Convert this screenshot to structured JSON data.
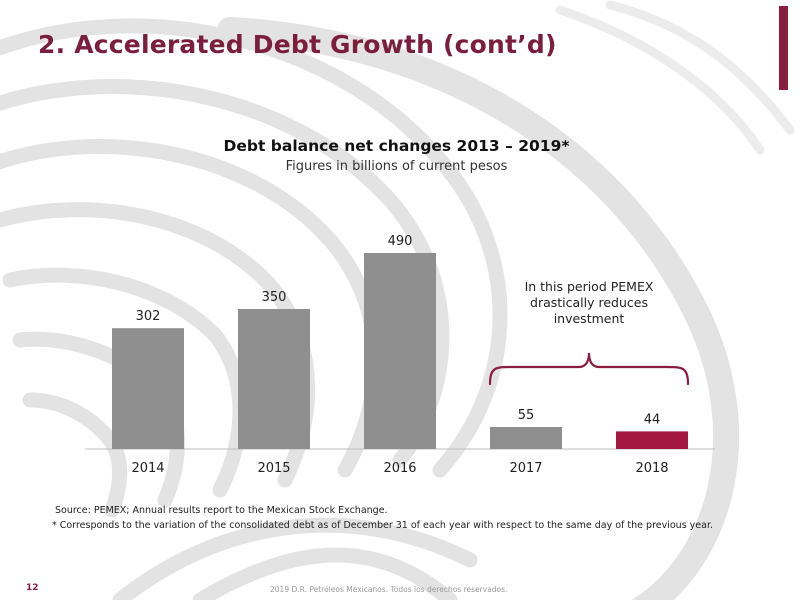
{
  "slide": {
    "title": "2. Accelerated Debt Growth (cont’d)",
    "page_number": "12",
    "copyright": "2019 D.R. Petróleos Mexicanos. Todos los derechos reservados.",
    "source": "Source: PEMEX; Annual results report to the Mexican Stock Exchange.",
    "footnote": "* Corresponds to the variation of the consolidated debt as of December 31 of each year with respect to the same day of the previous year.",
    "colors": {
      "accent": "#8b1e3f",
      "bar_gray": "#8f8f8f",
      "highlight_bar": "#a3173f"
    }
  },
  "chart_data": {
    "type": "bar",
    "title": "Debt balance net changes 2013 – 2019*",
    "subtitle": "Figures in billions of current pesos",
    "categories": [
      "2014",
      "2015",
      "2016",
      "2017",
      "2018"
    ],
    "values": [
      302,
      350,
      490,
      55,
      44
    ],
    "data_labels": [
      "302",
      "350",
      "490",
      "55",
      "44"
    ],
    "highlighted_category": "2018",
    "ylim": [
      0,
      500
    ],
    "grid": false,
    "annotation": "In this period PEMEX drastically reduces investment",
    "annotation_spans": [
      "2017",
      "2018"
    ]
  }
}
